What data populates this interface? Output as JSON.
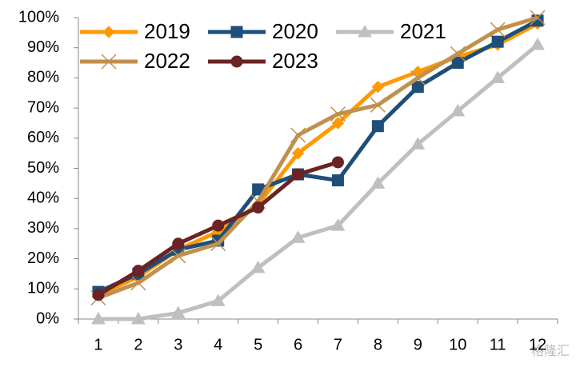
{
  "chart_data": {
    "type": "line",
    "categories": [
      "1",
      "2",
      "3",
      "4",
      "5",
      "6",
      "7",
      "8",
      "9",
      "10",
      "11",
      "12"
    ],
    "series": [
      {
        "name": "2019",
        "color": "#ff9900",
        "marker": "diamond",
        "values": [
          8,
          14,
          23,
          29,
          38,
          55,
          65,
          77,
          82,
          87,
          91,
          98
        ]
      },
      {
        "name": "2020",
        "color": "#1f4e79",
        "marker": "square",
        "values": [
          9,
          15,
          23,
          26,
          43,
          48,
          46,
          64,
          77,
          85,
          92,
          99
        ]
      },
      {
        "name": "2021",
        "color": "#bfbfbf",
        "marker": "triangle",
        "values": [
          0,
          0,
          2,
          6,
          17,
          27,
          31,
          45,
          58,
          69,
          80,
          91
        ]
      },
      {
        "name": "2022",
        "color": "#c0904d",
        "marker": "x",
        "values": [
          7,
          12,
          21,
          25,
          39,
          61,
          68,
          71,
          80,
          88,
          96,
          100
        ]
      },
      {
        "name": "2023",
        "color": "#6b2323",
        "marker": "circle",
        "values": [
          8,
          16,
          25,
          31,
          37,
          48,
          52,
          null,
          null,
          null,
          null,
          null
        ]
      }
    ],
    "ylim": [
      0,
      100
    ],
    "yticks": [
      {
        "value": 0,
        "label": "0%"
      },
      {
        "value": 10,
        "label": "10%"
      },
      {
        "value": 20,
        "label": "20%"
      },
      {
        "value": 30,
        "label": "30%"
      },
      {
        "value": 40,
        "label": "40%"
      },
      {
        "value": 50,
        "label": "50%"
      },
      {
        "value": 60,
        "label": "60%"
      },
      {
        "value": 70,
        "label": "70%"
      },
      {
        "value": 80,
        "label": "80%"
      },
      {
        "value": 90,
        "label": "90%"
      },
      {
        "value": 100,
        "label": "100%"
      }
    ],
    "legend_columns": 3,
    "legend": "upper left",
    "watermark": "格隆汇"
  }
}
